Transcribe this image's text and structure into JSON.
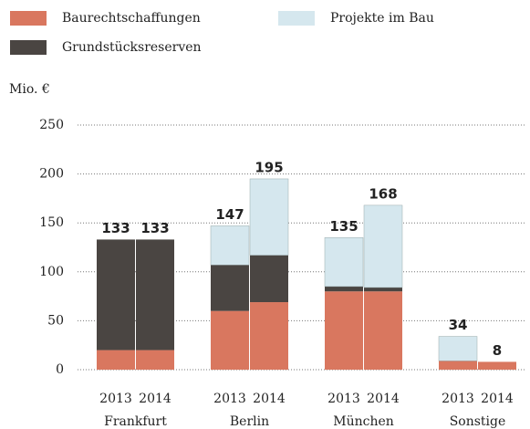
{
  "chart_data": {
    "type": "stacked-bar",
    "y_label": "Mio. €",
    "groups": [
      "Frankfurt",
      "Berlin",
      "München",
      "Sonstige"
    ],
    "categories": [
      "2013",
      "2014",
      "2013",
      "2014",
      "2013",
      "2014",
      "2013",
      "2014"
    ],
    "series": [
      {
        "name": "Baurechtschaffungen",
        "color": "#d9775f",
        "values": [
          20,
          20,
          60,
          69,
          80,
          80,
          9,
          8
        ]
      },
      {
        "name": "Grundstücksreserven",
        "color": "#4a4542",
        "values": [
          113,
          113,
          47,
          48,
          5,
          4,
          0,
          0
        ]
      },
      {
        "name": "Projekte im Bau",
        "color": "#d5e7ee",
        "values": [
          0,
          0,
          40,
          78,
          50,
          84,
          25,
          0
        ]
      }
    ],
    "totals": [
      133,
      133,
      147,
      195,
      135,
      168,
      34,
      8
    ],
    "ylim": [
      0,
      250
    ],
    "yticks": [
      0,
      50,
      100,
      150,
      200,
      250
    ],
    "grid": true
  }
}
